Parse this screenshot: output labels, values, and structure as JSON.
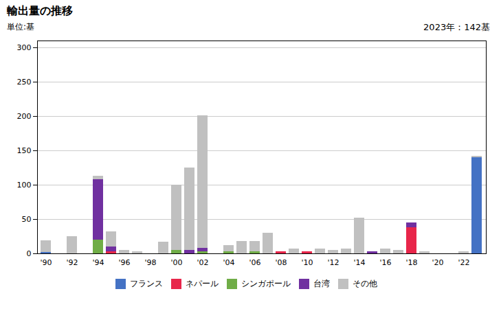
{
  "chart_data": {
    "type": "bar",
    "stacked": true,
    "title": "輸出量の推移",
    "ylabel": "単位:基",
    "annotation": "2023年：142基",
    "categories": [
      "'90",
      null,
      "'92",
      null,
      "'94",
      null,
      "'96",
      null,
      "'98",
      null,
      "'00",
      null,
      "'02",
      null,
      "'04",
      null,
      "'06",
      null,
      "'08",
      null,
      "'10",
      null,
      "'12",
      null,
      "'14",
      null,
      "'16",
      null,
      "'18",
      null,
      "'20",
      null,
      "'22",
      null
    ],
    "series": [
      {
        "name": "フランス",
        "color": "#4472c4",
        "values": [
          2,
          0,
          0,
          0,
          0,
          0,
          0,
          0,
          0,
          0,
          0,
          0,
          0,
          0,
          0,
          0,
          0,
          0,
          0,
          0,
          0,
          0,
          0,
          0,
          0,
          0,
          0,
          0,
          0,
          0,
          0,
          0,
          0,
          140
        ]
      },
      {
        "name": "ネパール",
        "color": "#e8264a",
        "values": [
          0,
          0,
          0,
          0,
          0,
          3,
          0,
          0,
          0,
          0,
          0,
          0,
          0,
          0,
          0,
          0,
          0,
          0,
          3,
          0,
          3,
          0,
          0,
          0,
          0,
          0,
          0,
          0,
          38,
          0,
          0,
          0,
          0,
          0
        ]
      },
      {
        "name": "シンガポール",
        "color": "#70ad47",
        "values": [
          0,
          0,
          0,
          0,
          20,
          0,
          0,
          0,
          0,
          0,
          5,
          0,
          3,
          0,
          3,
          0,
          3,
          0,
          0,
          0,
          0,
          0,
          0,
          0,
          0,
          0,
          0,
          0,
          0,
          0,
          0,
          0,
          0,
          0
        ]
      },
      {
        "name": "台湾",
        "color": "#7030a0",
        "values": [
          0,
          0,
          0,
          0,
          88,
          7,
          0,
          0,
          0,
          0,
          0,
          5,
          5,
          0,
          0,
          0,
          0,
          0,
          0,
          0,
          0,
          0,
          0,
          0,
          0,
          3,
          0,
          0,
          7,
          0,
          0,
          0,
          0,
          0
        ]
      },
      {
        "name": "その他",
        "color": "#c0c0c0",
        "values": [
          17,
          0,
          25,
          0,
          5,
          22,
          5,
          3,
          0,
          17,
          95,
          120,
          193,
          0,
          9,
          18,
          15,
          30,
          0,
          7,
          0,
          7,
          5,
          7,
          52,
          0,
          7,
          5,
          0,
          3,
          0,
          0,
          3,
          2
        ]
      }
    ],
    "ylim": [
      0,
      310
    ],
    "yticks": [
      0,
      50,
      100,
      150,
      200,
      250,
      300
    ],
    "grid": true,
    "legend": "bottom"
  }
}
